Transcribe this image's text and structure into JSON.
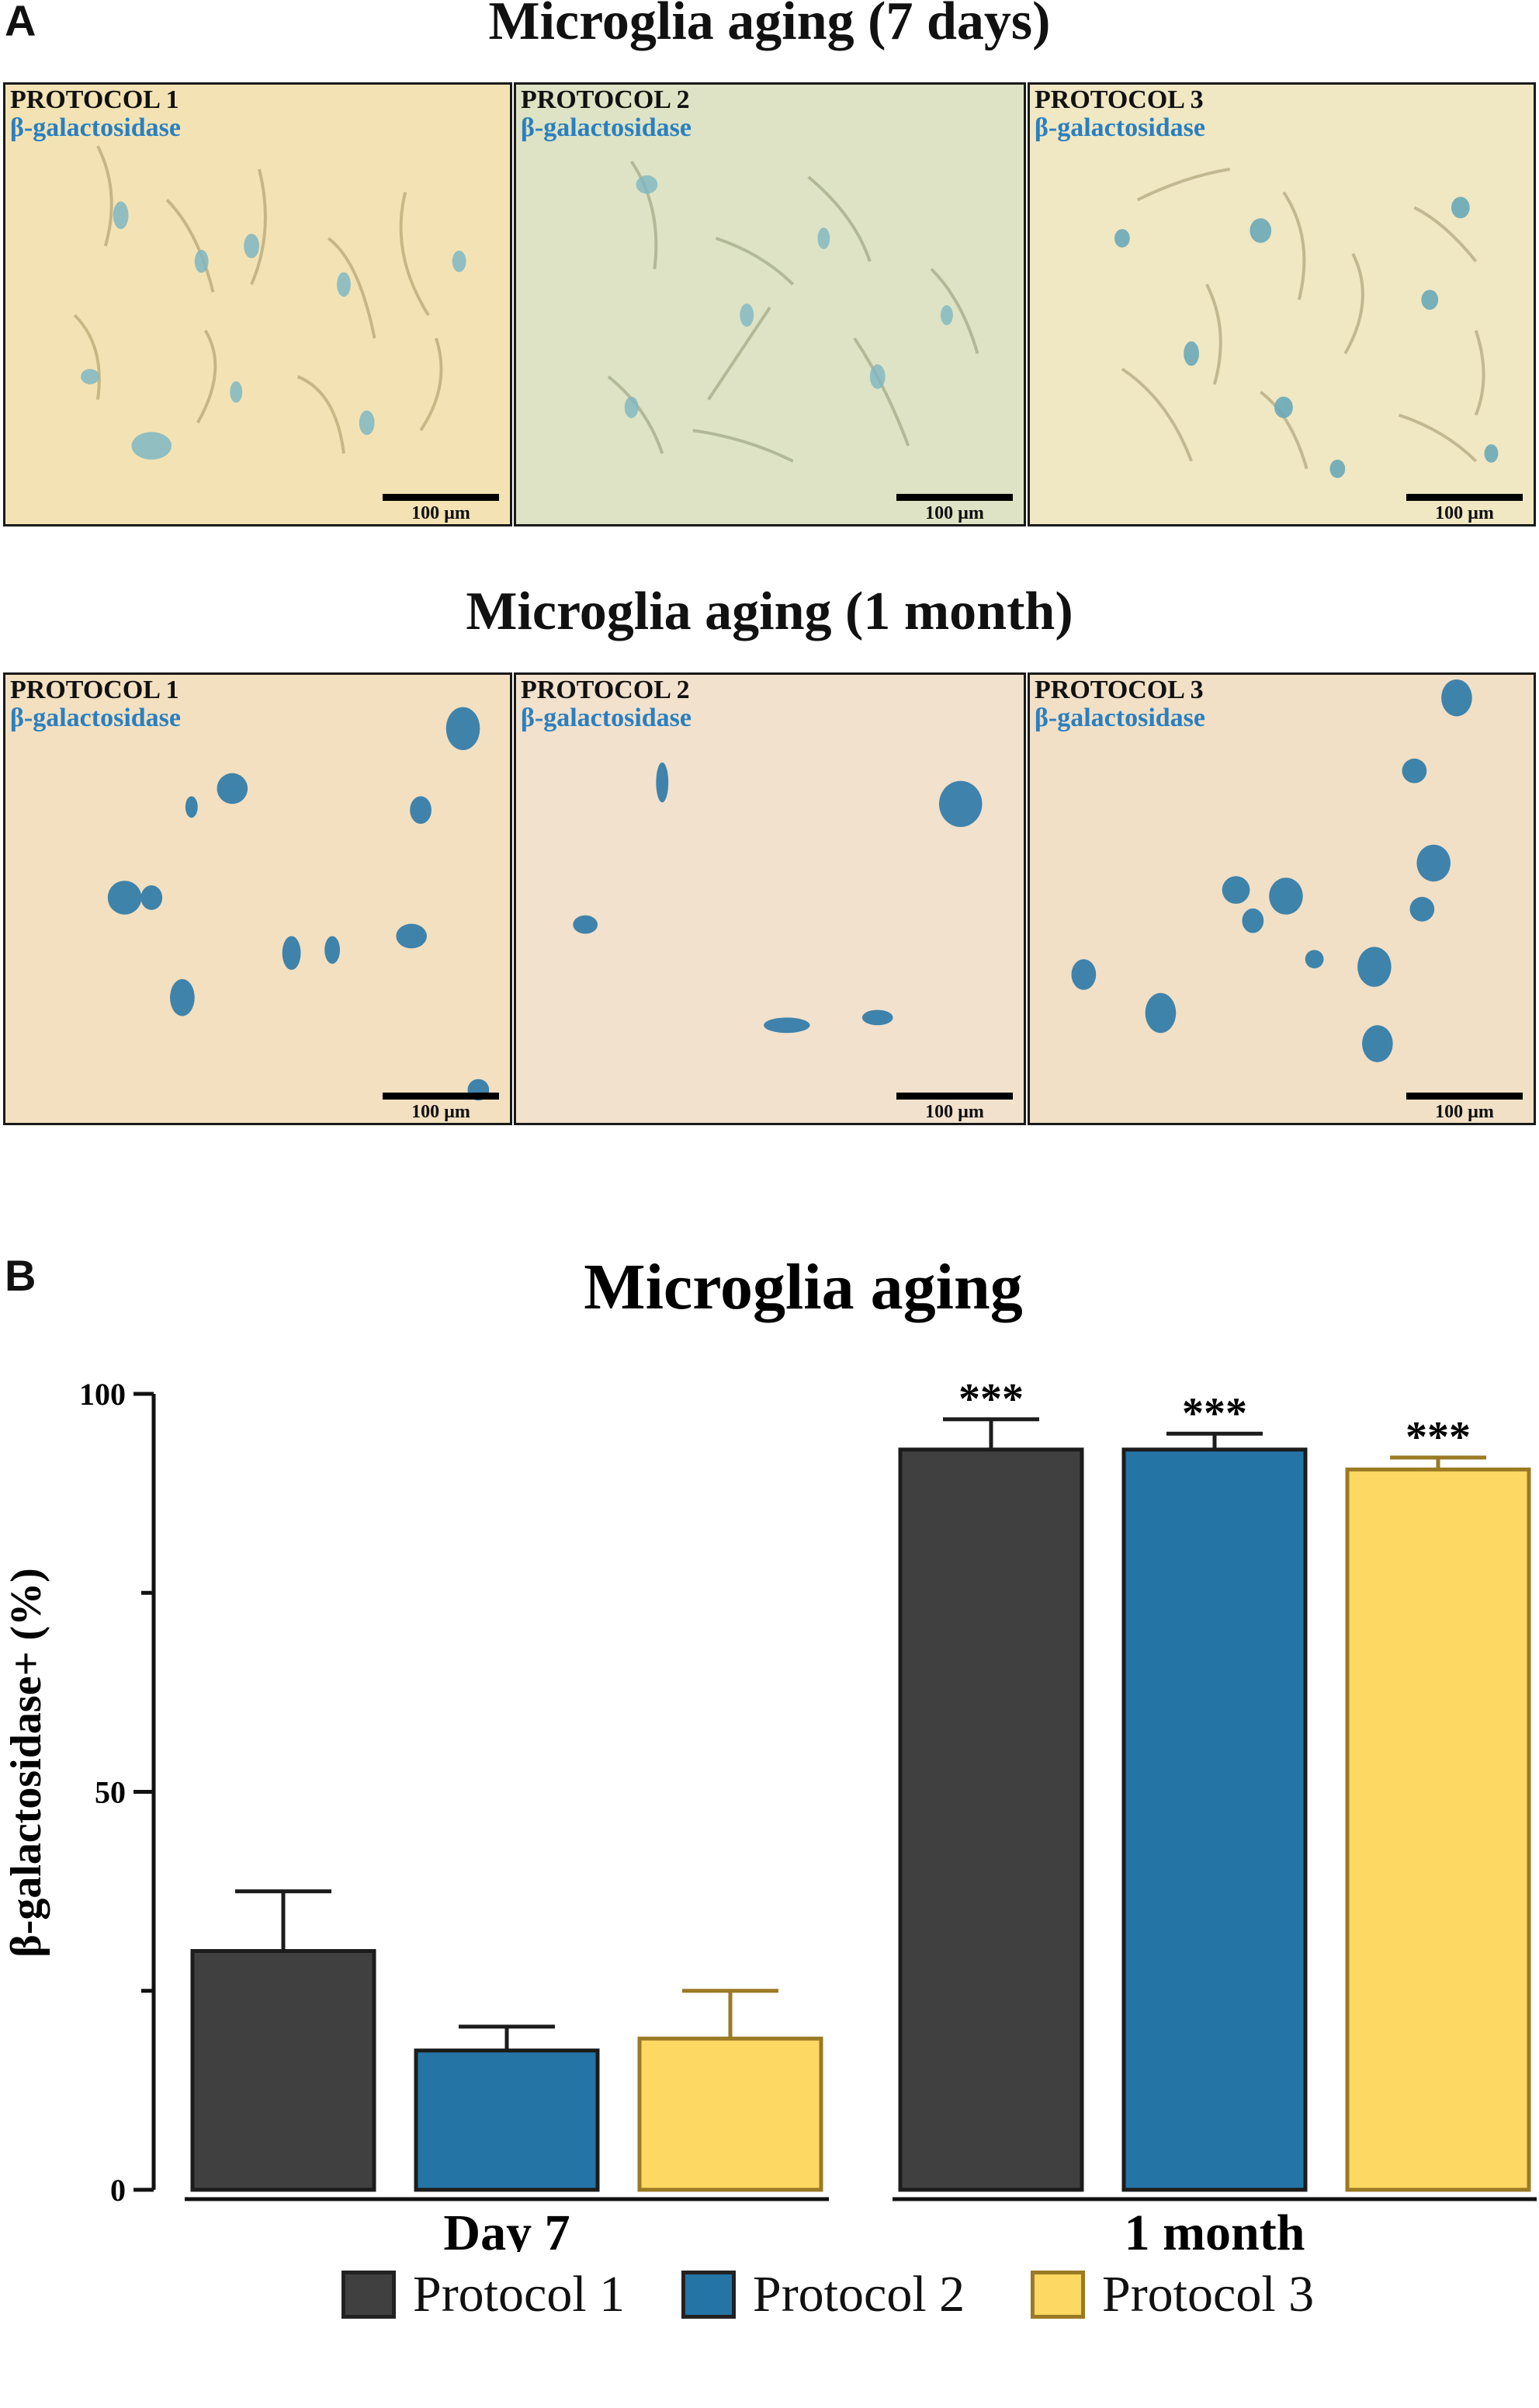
{
  "panel_a": {
    "letter": "A",
    "row1_title": "Microglia aging (7 days)",
    "row2_title": "Microglia aging (1 month)",
    "row1_panels": [
      {
        "protocol": "PROTOCOL 1",
        "stain": "β-galactosidase",
        "scale": "100 µm"
      },
      {
        "protocol": "PROTOCOL 2",
        "stain": "β-galactosidase",
        "scale": "100 µm"
      },
      {
        "protocol": "PROTOCOL 3",
        "stain": "β-galactosidase",
        "scale": "100 µm"
      }
    ],
    "row2_panels": [
      {
        "protocol": "PROTOCOL 1",
        "stain": "β-galactosidase",
        "scale": "100 µm"
      },
      {
        "protocol": "PROTOCOL 2",
        "stain": "β-galactosidase",
        "scale": "100 µm"
      },
      {
        "protocol": "PROTOCOL 3",
        "stain": "β-galactosidase",
        "scale": "100 µm"
      }
    ]
  },
  "panel_b": {
    "letter": "B"
  },
  "chart_data": {
    "type": "bar",
    "title": "Microglia aging",
    "ylabel": "β-galactosidase+ (%)",
    "xlabel": "",
    "ylim": [
      0,
      100
    ],
    "yticks": [
      0,
      50,
      100
    ],
    "categories": [
      "Day 7",
      "1 month"
    ],
    "series": [
      {
        "name": "Protocol 1",
        "color": "#404040",
        "values": [
          30,
          93
        ],
        "errors": [
          7.5,
          3.8
        ],
        "significance": [
          "",
          "***"
        ]
      },
      {
        "name": "Protocol 2",
        "color": "#2475a6",
        "values": [
          17.5,
          93
        ],
        "errors": [
          3,
          2
        ],
        "significance": [
          "",
          "***"
        ]
      },
      {
        "name": "Protocol 3",
        "color": "#fdd862",
        "values": [
          19,
          90.5
        ],
        "errors": [
          6,
          1.5
        ],
        "significance": [
          "",
          "***"
        ]
      }
    ],
    "legend_position": "bottom",
    "grid": false
  }
}
